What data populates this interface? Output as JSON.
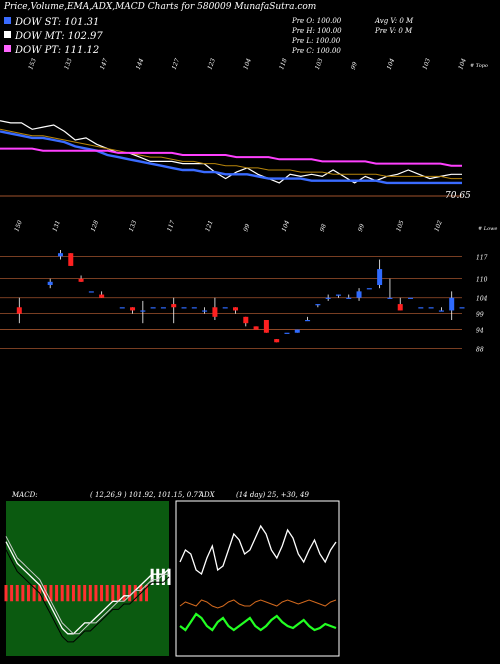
{
  "header": {
    "title": "Price,Volume,EMA,ADX,MACD Charts for 580009 MunafaSutra.com",
    "dow_st": "DOW ST: 101.31",
    "dow_mt": "DOW MT: 102.97",
    "dow_pt": "DOW PT: 111.12",
    "stats_col1": [
      "Pre  O: 100.00",
      "Pre  H: 100.00",
      "Pre  L: 100.00",
      "Pre  C: 100.00"
    ],
    "stats_col2": [
      "Avg V: 0  M",
      "Pre  V: 0  M"
    ]
  },
  "colors": {
    "st": "#3a6bff",
    "mt": "#ffffff",
    "pt": "#ff66ff",
    "bull": "#2f6bff",
    "bear": "#ff2020",
    "grid": "#a0522d",
    "macd_bg": "#0b5a10",
    "ema_short": "#3a6bff",
    "ema_mid": "#b8860b",
    "ema_long": "#ff40ff"
  },
  "chart_data": [
    {
      "type": "line",
      "name": "price-ema-panel",
      "top_labels": [
        "153",
        "133",
        "147",
        "144",
        "127",
        "123",
        "104",
        "118",
        "103",
        "99",
        "104",
        "103",
        "104"
      ],
      "top_note": "# Topo",
      "bottom_labels": [
        "150",
        "131",
        "128",
        "133",
        "117",
        "121",
        "99",
        "104",
        "98",
        "99",
        "105",
        "102"
      ],
      "bottom_note": "# Lowe",
      "last_price_label": "70.65",
      "series": [
        {
          "color_key": "mt",
          "values": [
            135,
            134,
            134,
            131,
            132,
            133,
            130,
            126,
            127,
            124,
            122,
            120,
            120,
            118,
            116,
            116,
            116,
            115,
            115,
            115,
            111,
            108,
            111,
            113,
            110,
            108,
            106,
            110,
            109,
            110,
            109,
            112,
            109,
            106,
            109,
            107,
            109,
            110,
            112,
            110,
            108,
            109,
            110,
            110
          ]
        },
        {
          "color_key": "ema_short",
          "values": [
            130,
            129,
            128,
            127,
            127,
            126,
            125,
            123,
            122,
            121,
            119,
            118,
            117,
            116,
            115,
            114,
            113,
            112,
            112,
            111,
            111,
            110,
            110,
            110,
            109,
            108,
            108,
            108,
            108,
            107,
            107,
            107,
            107,
            107,
            107,
            107,
            106,
            106,
            106,
            106,
            106,
            106,
            106,
            106
          ]
        },
        {
          "color_key": "ema_mid",
          "values": [
            131,
            130,
            129,
            128,
            128,
            127,
            126,
            125,
            124,
            123,
            122,
            121,
            120,
            119,
            118,
            118,
            117,
            116,
            116,
            115,
            115,
            114,
            114,
            113,
            113,
            112,
            112,
            112,
            111,
            111,
            111,
            110,
            110,
            110,
            110,
            110,
            109,
            109,
            109,
            109,
            109,
            109,
            108,
            108
          ]
        },
        {
          "color_key": "ema_long",
          "values": [
            122,
            122,
            122,
            122,
            121,
            121,
            121,
            121,
            121,
            121,
            121,
            120,
            120,
            120,
            120,
            120,
            120,
            119,
            119,
            119,
            119,
            119,
            118,
            118,
            118,
            118,
            117,
            117,
            117,
            117,
            116,
            116,
            116,
            116,
            116,
            115,
            115,
            115,
            115,
            115,
            115,
            115,
            114,
            114
          ]
        }
      ]
    },
    {
      "type": "candlestick",
      "name": "price-candles",
      "y_ticks": [
        117,
        110,
        104,
        99,
        94,
        88
      ],
      "candles": [
        {
          "x": 1,
          "o": 101,
          "c": 99,
          "h": 104,
          "l": 96
        },
        {
          "x": 4,
          "o": 108,
          "c": 109,
          "h": 110,
          "l": 107
        },
        {
          "x": 5,
          "o": 117,
          "c": 118,
          "h": 119,
          "l": 116
        },
        {
          "x": 6,
          "o": 118,
          "c": 114,
          "h": 118,
          "l": 114
        },
        {
          "x": 7,
          "o": 110,
          "c": 109,
          "h": 111,
          "l": 109
        },
        {
          "x": 8,
          "o": 106,
          "c": 106,
          "h": 106,
          "l": 106
        },
        {
          "x": 9,
          "o": 105,
          "c": 104,
          "h": 106,
          "l": 104
        },
        {
          "x": 11,
          "o": 101,
          "c": 101,
          "h": 101,
          "l": 101
        },
        {
          "x": 12,
          "o": 101,
          "c": 100,
          "h": 101,
          "l": 99
        },
        {
          "x": 13,
          "o": 100,
          "c": 100,
          "h": 103,
          "l": 96
        },
        {
          "x": 14,
          "o": 101,
          "c": 101,
          "h": 101,
          "l": 101
        },
        {
          "x": 15,
          "o": 101,
          "c": 101,
          "h": 101,
          "l": 101
        },
        {
          "x": 16,
          "o": 102,
          "c": 101,
          "h": 104,
          "l": 96
        },
        {
          "x": 17,
          "o": 101,
          "c": 101,
          "h": 101,
          "l": 101
        },
        {
          "x": 18,
          "o": 101,
          "c": 101,
          "h": 101,
          "l": 101
        },
        {
          "x": 19,
          "o": 100,
          "c": 100,
          "h": 101,
          "l": 99
        },
        {
          "x": 20,
          "o": 101,
          "c": 98,
          "h": 104,
          "l": 97
        },
        {
          "x": 21,
          "o": 101,
          "c": 101,
          "h": 101,
          "l": 101
        },
        {
          "x": 22,
          "o": 101,
          "c": 100,
          "h": 101,
          "l": 99
        },
        {
          "x": 23,
          "o": 98,
          "c": 96,
          "h": 98,
          "l": 95
        },
        {
          "x": 24,
          "o": 95,
          "c": 94,
          "h": 95,
          "l": 94
        },
        {
          "x": 25,
          "o": 97,
          "c": 93,
          "h": 97,
          "l": 93
        },
        {
          "x": 26,
          "o": 91,
          "c": 90,
          "h": 91,
          "l": 90
        },
        {
          "x": 27,
          "o": 93,
          "c": 93,
          "h": 93,
          "l": 93
        },
        {
          "x": 28,
          "o": 93,
          "c": 94,
          "h": 94,
          "l": 93
        },
        {
          "x": 29,
          "o": 97,
          "c": 97,
          "h": 98,
          "l": 97
        },
        {
          "x": 30,
          "o": 102,
          "c": 102,
          "h": 102,
          "l": 101
        },
        {
          "x": 31,
          "o": 104,
          "c": 104,
          "h": 105,
          "l": 103
        },
        {
          "x": 32,
          "o": 105,
          "c": 105,
          "h": 105,
          "l": 104
        },
        {
          "x": 33,
          "o": 104,
          "c": 104,
          "h": 105,
          "l": 104
        },
        {
          "x": 34,
          "o": 104,
          "c": 106,
          "h": 107,
          "l": 103
        },
        {
          "x": 35,
          "o": 107,
          "c": 107,
          "h": 107,
          "l": 107
        },
        {
          "x": 36,
          "o": 108,
          "c": 113,
          "h": 116,
          "l": 107
        },
        {
          "x": 37,
          "o": 104,
          "c": 104,
          "h": 110,
          "l": 104
        },
        {
          "x": 38,
          "o": 102,
          "c": 100,
          "h": 104,
          "l": 100
        },
        {
          "x": 39,
          "o": 104,
          "c": 104,
          "h": 104,
          "l": 104
        },
        {
          "x": 40,
          "o": 101,
          "c": 101,
          "h": 101,
          "l": 101
        },
        {
          "x": 41,
          "o": 101,
          "c": 101,
          "h": 101,
          "l": 101
        },
        {
          "x": 42,
          "o": 100,
          "c": 100,
          "h": 101,
          "l": 100
        },
        {
          "x": 43,
          "o": 100,
          "c": 104,
          "h": 106,
          "l": 97
        },
        {
          "x": 44,
          "o": 101,
          "c": 101,
          "h": 101,
          "l": 101
        }
      ]
    },
    {
      "type": "line",
      "name": "macd-panel",
      "title": "MACD:",
      "values_text": "( 12,26,9 ) 101.92, 101.15, 0.77",
      "macd": [
        8,
        6,
        4,
        3,
        2,
        1,
        0,
        -2,
        -4,
        -6,
        -8,
        -9,
        -9,
        -8,
        -7,
        -7,
        -6,
        -5,
        -4,
        -3,
        -3,
        -2,
        -2,
        -1,
        0,
        1,
        2,
        2,
        2,
        3
      ],
      "signal": [
        9,
        7,
        5,
        4,
        3,
        2,
        1,
        -1,
        -3,
        -5,
        -7,
        -8,
        -9,
        -9,
        -8,
        -7,
        -7,
        -6,
        -5,
        -4,
        -3,
        -3,
        -2,
        -1,
        -1,
        0,
        1,
        1,
        2,
        2
      ],
      "histogram": [
        -1,
        -1,
        -1,
        -1,
        -1,
        -1,
        -1,
        -1,
        -1,
        -1,
        -1,
        -1,
        -1,
        -1,
        -1,
        -1,
        -1,
        -1,
        -1,
        -1,
        -1,
        -1,
        -1,
        -1,
        -1,
        -1,
        1,
        1,
        1,
        1
      ]
    },
    {
      "type": "line",
      "name": "adx-panel",
      "title": "ADX",
      "values_text": "(14 day) 25, +30, 49",
      "adx": [
        44,
        50,
        48,
        40,
        38,
        46,
        52,
        40,
        42,
        50,
        58,
        55,
        48,
        50,
        56,
        62,
        58,
        50,
        46,
        52,
        60,
        56,
        48,
        44,
        50,
        55,
        48,
        44,
        50,
        54
      ],
      "plus_di": [
        22,
        24,
        23,
        22,
        25,
        24,
        22,
        21,
        22,
        24,
        25,
        23,
        22,
        22,
        24,
        25,
        24,
        23,
        22,
        24,
        25,
        24,
        23,
        24,
        25,
        24,
        23,
        22,
        24,
        25
      ],
      "minus_di": [
        12,
        10,
        14,
        18,
        16,
        12,
        10,
        14,
        16,
        12,
        10,
        12,
        14,
        16,
        12,
        10,
        12,
        15,
        17,
        14,
        12,
        11,
        13,
        15,
        12,
        10,
        11,
        13,
        12,
        11
      ]
    }
  ]
}
